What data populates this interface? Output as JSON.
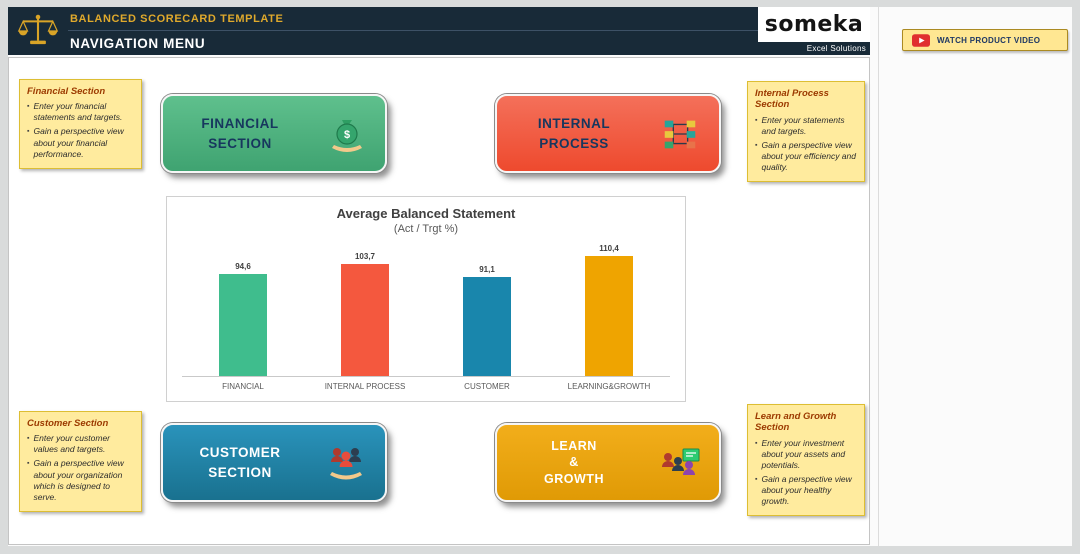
{
  "header": {
    "app_title": "BALANCED SCORECARD TEMPLATE",
    "page_title": "NAVIGATION MENU",
    "logo_text": "someka",
    "logo_subtext": "Excel Solutions"
  },
  "watch_video": {
    "label": "WATCH PRODUCT VIDEO"
  },
  "icons": {
    "header": "balance-scale-icon",
    "watch_video": "youtube-icon",
    "financial_button": "money-bag-icon",
    "internal_button": "process-flow-icon",
    "customer_button": "customers-hand-icon",
    "learn_button": "training-icon"
  },
  "notes": {
    "financial": {
      "title": "Financial Section",
      "bullets": [
        "Enter your financial statements and targets.",
        "Gain a perspective view about your financial performance."
      ]
    },
    "internal": {
      "title": "Internal Process Section",
      "bullets": [
        "Enter your statements and targets.",
        "Gain a perspective view about your efficiency and quality."
      ]
    },
    "customer": {
      "title": "Customer Section",
      "bullets": [
        "Enter your customer values and targets.",
        "Gain a perspective view about your organization which is designed to serve."
      ]
    },
    "learn": {
      "title": "Learn and Growth Section",
      "bullets": [
        "Enter your investment about your assets and potentials.",
        "Gain a perspective view about your healthy growth."
      ]
    }
  },
  "buttons": {
    "financial": {
      "label": "FINANCIAL\nSECTION",
      "color": "#4cae7f"
    },
    "internal": {
      "label": "INTERNAL\nPROCESS",
      "color": "#f15540"
    },
    "customer": {
      "label": "CUSTOMER\nSECTION",
      "color": "#1e80a4"
    },
    "learn": {
      "label": "LEARN\n&\nGROWTH",
      "color": "#eda408"
    }
  },
  "chart_data": {
    "type": "bar",
    "title": "Average Balanced Statement",
    "subtitle": "(Act / Trgt %)",
    "categories": [
      "FINANCIAL",
      "INTERNAL PROCESS",
      "CUSTOMER",
      "LEARNING&GROWTH"
    ],
    "values": [
      94.6,
      103.7,
      91.1,
      110.4
    ],
    "value_labels": [
      "94,6",
      "103,7",
      "91,1",
      "110,4"
    ],
    "colors": [
      "#3fbd8d",
      "#f4583e",
      "#1986ac",
      "#efa400"
    ],
    "xlabel": "",
    "ylabel": "",
    "ylim": [
      0,
      120
    ],
    "grid": false,
    "legend": false
  }
}
